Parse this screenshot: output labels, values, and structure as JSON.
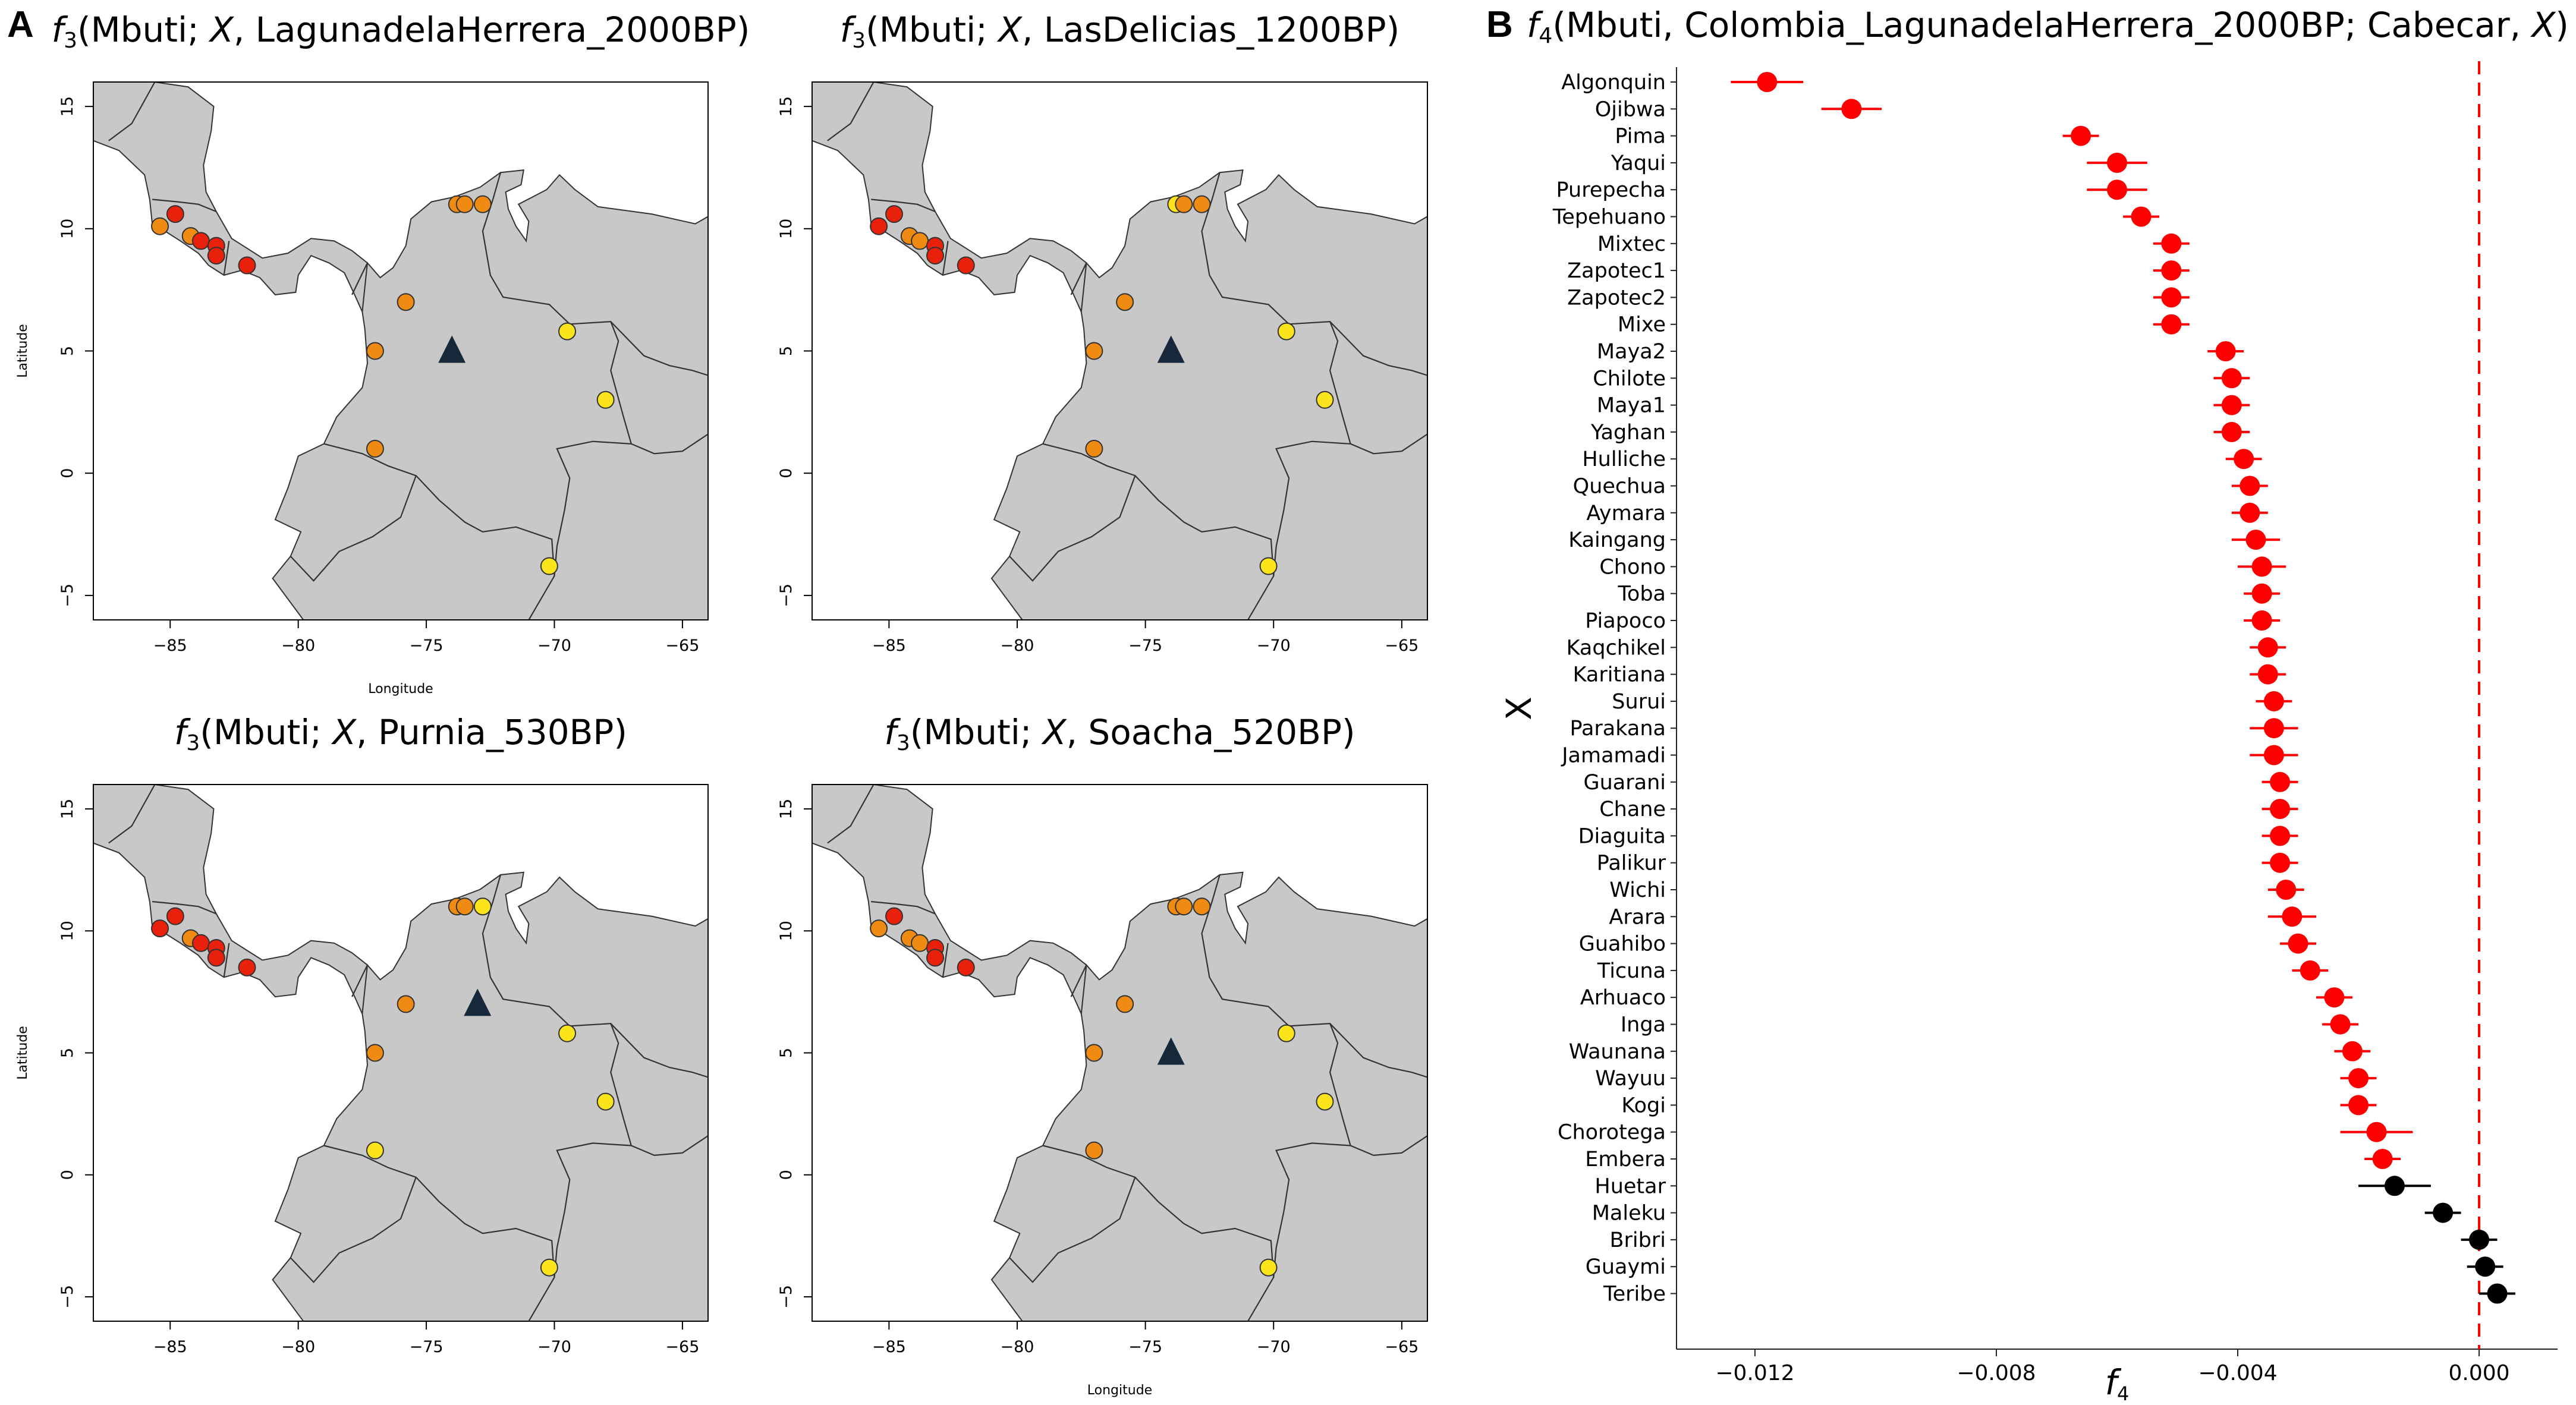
{
  "panel_a_label": "A",
  "panel_b_label": "B",
  "colors": {
    "land": "#c8c8c8",
    "border": "#333333",
    "sample": "#16283a",
    "high": "#e8200c",
    "mid": "#ef8a12",
    "low": "#fbe41c",
    "sig": "#ff0000",
    "nonsig": "#000000",
    "zero_line": "#ff0000"
  },
  "chart_data": [
    {
      "type": "scatter",
      "title_parts": [
        "f",
        "3",
        "(Mbuti; ",
        "X",
        ", LagunadelaHerrera_2000BP)"
      ],
      "xlabel": "Longitude",
      "ylabel": "Latitude",
      "xlim": [
        -88,
        -64
      ],
      "ylim": [
        -6,
        16
      ],
      "xticks": [
        -85,
        -80,
        -75,
        -70,
        -65
      ],
      "yticks": [
        -5,
        0,
        5,
        10,
        15
      ],
      "sample_site": {
        "lon": -74,
        "lat": 5
      },
      "points": [
        {
          "lon": -85.4,
          "lat": 10.1,
          "level": "mid"
        },
        {
          "lon": -84.8,
          "lat": 10.6,
          "level": "high"
        },
        {
          "lon": -84.2,
          "lat": 9.7,
          "level": "mid"
        },
        {
          "lon": -83.8,
          "lat": 9.5,
          "level": "high"
        },
        {
          "lon": -83.2,
          "lat": 9.3,
          "level": "high"
        },
        {
          "lon": -83.2,
          "lat": 8.9,
          "level": "high"
        },
        {
          "lon": -82.0,
          "lat": 8.5,
          "level": "high"
        },
        {
          "lon": -73.8,
          "lat": 11.0,
          "level": "mid"
        },
        {
          "lon": -73.5,
          "lat": 11.0,
          "level": "mid"
        },
        {
          "lon": -72.8,
          "lat": 11.0,
          "level": "mid"
        },
        {
          "lon": -75.8,
          "lat": 7.0,
          "level": "mid"
        },
        {
          "lon": -77.0,
          "lat": 5.0,
          "level": "mid"
        },
        {
          "lon": -77.0,
          "lat": 1.0,
          "level": "mid"
        },
        {
          "lon": -69.5,
          "lat": 5.8,
          "level": "low"
        },
        {
          "lon": -68.0,
          "lat": 3.0,
          "level": "low"
        },
        {
          "lon": -70.2,
          "lat": -3.8,
          "level": "low"
        }
      ]
    },
    {
      "type": "scatter",
      "title_parts": [
        "f",
        "3",
        "(Mbuti; ",
        "X",
        ", LasDelicias_1200BP)"
      ],
      "xlabel": "",
      "ylabel": "",
      "xlim": [
        -88,
        -64
      ],
      "ylim": [
        -6,
        16
      ],
      "xticks": [
        -85,
        -80,
        -75,
        -70,
        -65
      ],
      "yticks": [
        -5,
        0,
        5,
        10,
        15
      ],
      "sample_site": {
        "lon": -74,
        "lat": 5
      },
      "points": [
        {
          "lon": -85.4,
          "lat": 10.1,
          "level": "high"
        },
        {
          "lon": -84.8,
          "lat": 10.6,
          "level": "high"
        },
        {
          "lon": -84.2,
          "lat": 9.7,
          "level": "mid"
        },
        {
          "lon": -83.8,
          "lat": 9.5,
          "level": "mid"
        },
        {
          "lon": -83.2,
          "lat": 9.3,
          "level": "high"
        },
        {
          "lon": -83.2,
          "lat": 8.9,
          "level": "high"
        },
        {
          "lon": -82.0,
          "lat": 8.5,
          "level": "high"
        },
        {
          "lon": -73.8,
          "lat": 11.0,
          "level": "low"
        },
        {
          "lon": -73.5,
          "lat": 11.0,
          "level": "mid"
        },
        {
          "lon": -72.8,
          "lat": 11.0,
          "level": "mid"
        },
        {
          "lon": -75.8,
          "lat": 7.0,
          "level": "mid"
        },
        {
          "lon": -77.0,
          "lat": 5.0,
          "level": "mid"
        },
        {
          "lon": -77.0,
          "lat": 1.0,
          "level": "mid"
        },
        {
          "lon": -69.5,
          "lat": 5.8,
          "level": "low"
        },
        {
          "lon": -68.0,
          "lat": 3.0,
          "level": "low"
        },
        {
          "lon": -70.2,
          "lat": -3.8,
          "level": "low"
        }
      ]
    },
    {
      "type": "scatter",
      "title_parts": [
        "f",
        "3",
        "(Mbuti;  ",
        "X",
        ", Purnia_530BP)"
      ],
      "xlabel": "",
      "ylabel": "Latitude",
      "xlim": [
        -88,
        -64
      ],
      "ylim": [
        -6,
        16
      ],
      "xticks": [
        -85,
        -80,
        -75,
        -70,
        -65
      ],
      "yticks": [
        -5,
        0,
        5,
        10,
        15
      ],
      "sample_site": {
        "lon": -73,
        "lat": 7
      },
      "points": [
        {
          "lon": -85.4,
          "lat": 10.1,
          "level": "high"
        },
        {
          "lon": -84.8,
          "lat": 10.6,
          "level": "high"
        },
        {
          "lon": -84.2,
          "lat": 9.7,
          "level": "mid"
        },
        {
          "lon": -83.8,
          "lat": 9.5,
          "level": "high"
        },
        {
          "lon": -83.2,
          "lat": 9.3,
          "level": "high"
        },
        {
          "lon": -83.2,
          "lat": 8.9,
          "level": "high"
        },
        {
          "lon": -82.0,
          "lat": 8.5,
          "level": "high"
        },
        {
          "lon": -73.8,
          "lat": 11.0,
          "level": "mid"
        },
        {
          "lon": -73.5,
          "lat": 11.0,
          "level": "mid"
        },
        {
          "lon": -72.8,
          "lat": 11.0,
          "level": "low"
        },
        {
          "lon": -75.8,
          "lat": 7.0,
          "level": "mid"
        },
        {
          "lon": -77.0,
          "lat": 5.0,
          "level": "mid"
        },
        {
          "lon": -77.0,
          "lat": 1.0,
          "level": "low"
        },
        {
          "lon": -69.5,
          "lat": 5.8,
          "level": "low"
        },
        {
          "lon": -68.0,
          "lat": 3.0,
          "level": "low"
        },
        {
          "lon": -70.2,
          "lat": -3.8,
          "level": "low"
        }
      ]
    },
    {
      "type": "scatter",
      "title_parts": [
        "f",
        "3",
        "(Mbuti; ",
        "X",
        ", Soacha_520BP)"
      ],
      "xlabel": "Longitude",
      "ylabel": "",
      "xlim": [
        -88,
        -64
      ],
      "ylim": [
        -6,
        16
      ],
      "xticks": [
        -85,
        -80,
        -75,
        -70,
        -65
      ],
      "yticks": [
        -5,
        0,
        5,
        10,
        15
      ],
      "sample_site": {
        "lon": -74,
        "lat": 5
      },
      "points": [
        {
          "lon": -85.4,
          "lat": 10.1,
          "level": "mid"
        },
        {
          "lon": -84.8,
          "lat": 10.6,
          "level": "high"
        },
        {
          "lon": -84.2,
          "lat": 9.7,
          "level": "mid"
        },
        {
          "lon": -83.8,
          "lat": 9.5,
          "level": "mid"
        },
        {
          "lon": -83.2,
          "lat": 9.3,
          "level": "high"
        },
        {
          "lon": -83.2,
          "lat": 8.9,
          "level": "high"
        },
        {
          "lon": -82.0,
          "lat": 8.5,
          "level": "high"
        },
        {
          "lon": -73.8,
          "lat": 11.0,
          "level": "mid"
        },
        {
          "lon": -73.5,
          "lat": 11.0,
          "level": "mid"
        },
        {
          "lon": -72.8,
          "lat": 11.0,
          "level": "mid"
        },
        {
          "lon": -75.8,
          "lat": 7.0,
          "level": "mid"
        },
        {
          "lon": -77.0,
          "lat": 5.0,
          "level": "mid"
        },
        {
          "lon": -77.0,
          "lat": 1.0,
          "level": "mid"
        },
        {
          "lon": -69.5,
          "lat": 5.8,
          "level": "low"
        },
        {
          "lon": -68.0,
          "lat": 3.0,
          "level": "low"
        },
        {
          "lon": -70.2,
          "lat": -3.8,
          "level": "low"
        }
      ]
    },
    {
      "type": "scatter",
      "title_parts": [
        "f",
        "4",
        "(Mbuti, Colombia_LagunadelaHerrera_2000BP; Cabecar, ",
        "X",
        ")"
      ],
      "xlabel": "f",
      "xlabel_sub": "4",
      "ylabel": "X",
      "xlim": [
        -0.0133,
        0.0013
      ],
      "xticks": [
        -0.012,
        -0.008,
        -0.004,
        0.0
      ],
      "xtick_labels": [
        "−0.012",
        "−0.008",
        "−0.004",
        "0.000"
      ],
      "reference_line": 0.0,
      "categories": [
        "Algonquin",
        "Ojibwa",
        "Pima",
        "Yaqui",
        "Purepecha",
        "Tepehuano",
        "Mixtec",
        "Zapotec1",
        "Zapotec2",
        "Mixe",
        "Maya2",
        "Chilote",
        "Maya1",
        "Yaghan",
        "Hulliche",
        "Quechua",
        "Aymara",
        "Kaingang",
        "Chono",
        "Toba",
        "Piapoco",
        "Kaqchikel",
        "Karitiana",
        "Surui",
        "Parakana",
        "Jamamadi",
        "Guarani",
        "Chane",
        "Diaguita",
        "Palikur",
        "Wichi",
        "Arara",
        "Guahibo",
        "Ticuna",
        "Arhuaco",
        "Inga",
        "Waunana",
        "Wayuu",
        "Kogi",
        "Chorotega",
        "Embera",
        "Huetar",
        "Maleku",
        "Bribri",
        "Guaymi",
        "Teribe"
      ],
      "values": [
        -0.0118,
        -0.0104,
        -0.0066,
        -0.006,
        -0.006,
        -0.0056,
        -0.0051,
        -0.0051,
        -0.0051,
        -0.0051,
        -0.0042,
        -0.0041,
        -0.0041,
        -0.0041,
        -0.0039,
        -0.0038,
        -0.0038,
        -0.0037,
        -0.0036,
        -0.0036,
        -0.0036,
        -0.0035,
        -0.0035,
        -0.0034,
        -0.0034,
        -0.0034,
        -0.0033,
        -0.0033,
        -0.0033,
        -0.0033,
        -0.0032,
        -0.0031,
        -0.003,
        -0.0028,
        -0.0024,
        -0.0023,
        -0.0021,
        -0.002,
        -0.002,
        -0.0017,
        -0.0016,
        -0.0014,
        -0.0006,
        0.0,
        0.0001,
        0.0003
      ],
      "errors": [
        0.0006,
        0.0005,
        0.0003,
        0.0005,
        0.0005,
        0.0003,
        0.0003,
        0.0003,
        0.0003,
        0.0003,
        0.0003,
        0.0003,
        0.0003,
        0.0003,
        0.0003,
        0.0003,
        0.0003,
        0.0004,
        0.0004,
        0.0003,
        0.0003,
        0.0003,
        0.0003,
        0.0003,
        0.0004,
        0.0004,
        0.0003,
        0.0003,
        0.0003,
        0.0003,
        0.0003,
        0.0004,
        0.0003,
        0.0003,
        0.0003,
        0.0003,
        0.0003,
        0.0003,
        0.0003,
        0.0006,
        0.0003,
        0.0006,
        0.0003,
        0.0003,
        0.0003,
        0.0003
      ],
      "significant": [
        true,
        true,
        true,
        true,
        true,
        true,
        true,
        true,
        true,
        true,
        true,
        true,
        true,
        true,
        true,
        true,
        true,
        true,
        true,
        true,
        true,
        true,
        true,
        true,
        true,
        true,
        true,
        true,
        true,
        true,
        true,
        true,
        true,
        true,
        true,
        true,
        true,
        true,
        true,
        true,
        true,
        false,
        false,
        false,
        false,
        false
      ]
    }
  ]
}
